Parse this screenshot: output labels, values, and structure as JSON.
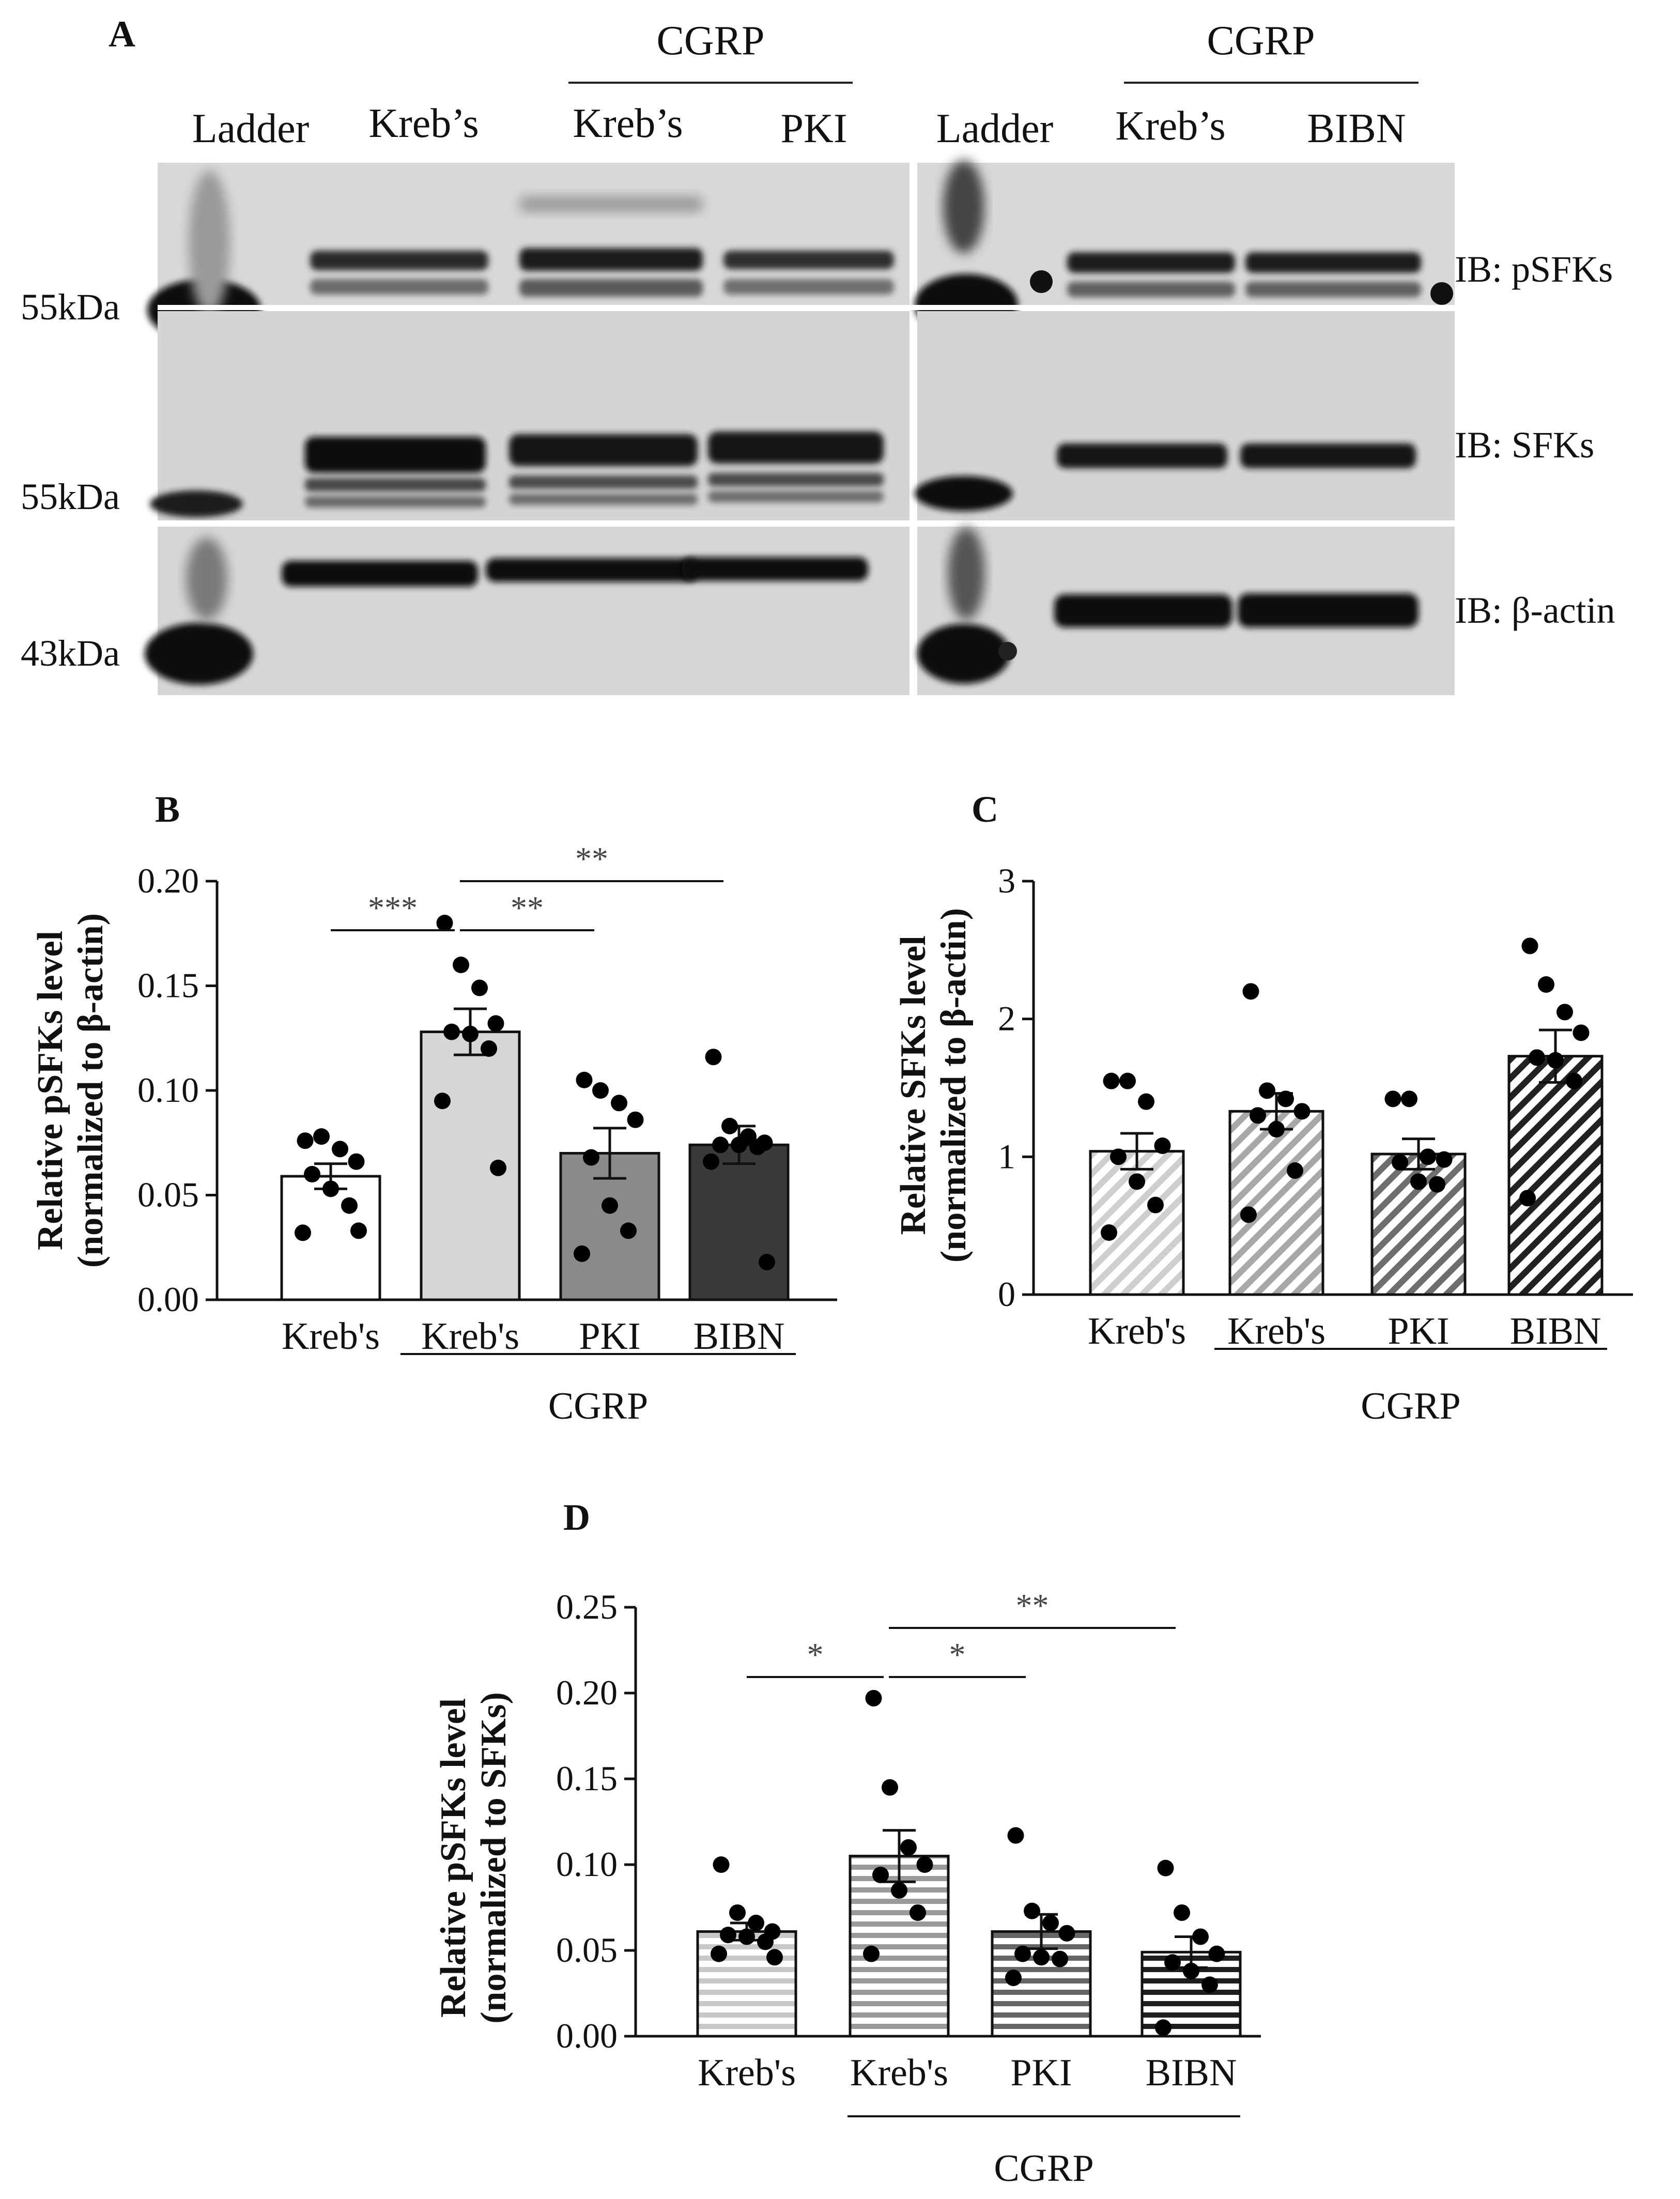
{
  "panel_a": {
    "letter": "A",
    "left_header": {
      "group": "CGRP",
      "lanes": [
        "Ladder",
        "Kreb’s",
        "Kreb’s",
        "PKI"
      ]
    },
    "right_header": {
      "group": "CGRP",
      "lanes": [
        "Ladder",
        "Kreb’s",
        "BIBN"
      ]
    },
    "blots": [
      {
        "marker": "55kDa",
        "label": "IB: pSFKs"
      },
      {
        "marker": "55kDa",
        "label": "IB: SFKs"
      },
      {
        "marker": "43kDa",
        "label": "IB: β-actin"
      }
    ]
  },
  "chart_data": [
    {
      "panel": "B",
      "type": "bar",
      "categories": [
        "Kreb's",
        "Kreb's",
        "PKI",
        "BIBN"
      ],
      "group_label": "CGRP",
      "ylabel_line1": "Relative pSFKs level",
      "ylabel_line2": "(normalized to β-actin)",
      "ylim": [
        0,
        0.2
      ],
      "yticks": [
        "0.00",
        "0.05",
        "0.10",
        "0.15",
        "0.20"
      ],
      "ytick_values": [
        0,
        0.05,
        0.1,
        0.15,
        0.2
      ],
      "series": [
        {
          "values": [
            0.059,
            0.128,
            0.07,
            0.074
          ],
          "sem": [
            0.006,
            0.011,
            0.012,
            0.009
          ]
        }
      ],
      "bar_colors": [
        "#ffffff",
        "#d6d6d6",
        "#8a8a8a",
        "#3a3a3a"
      ],
      "pattern": "solid",
      "points": [
        [
          0.076,
          0.078,
          0.072,
          0.066,
          0.06,
          0.053,
          0.045,
          0.032,
          0.033
        ],
        [
          0.18,
          0.16,
          0.149,
          0.132,
          0.128,
          0.127,
          0.12,
          0.095,
          0.063
        ],
        [
          0.105,
          0.1,
          0.094,
          0.086,
          0.068,
          0.045,
          0.033,
          0.022
        ],
        [
          0.116,
          0.083,
          0.078,
          0.075,
          0.074,
          0.074,
          0.073,
          0.066,
          0.018
        ]
      ],
      "significance": [
        {
          "from": 0,
          "to": 1,
          "label": "***"
        },
        {
          "from": 1,
          "to": 2,
          "label": "**"
        },
        {
          "from": 1,
          "to": 3,
          "label": "**"
        }
      ]
    },
    {
      "panel": "C",
      "type": "bar",
      "categories": [
        "Kreb's",
        "Kreb's",
        "PKI",
        "BIBN"
      ],
      "group_label": "CGRP",
      "ylabel_line1": "Relative SFKs level",
      "ylabel_line2": "(normalized to β-actin)",
      "ylim": [
        0,
        3
      ],
      "yticks": [
        "0",
        "1",
        "2",
        "3"
      ],
      "ytick_values": [
        0,
        1,
        2,
        3
      ],
      "series": [
        {
          "values": [
            1.04,
            1.33,
            1.02,
            1.73
          ],
          "sem": [
            0.13,
            0.13,
            0.11,
            0.19
          ]
        }
      ],
      "bar_colors": [
        "#cfcfcf",
        "#a8a8a8",
        "#6e6e6e",
        "#222222"
      ],
      "pattern": "diagonal",
      "points": [
        [
          1.55,
          1.55,
          1.4,
          1.08,
          1.0,
          0.82,
          0.65,
          0.45
        ],
        [
          2.2,
          1.48,
          1.42,
          1.33,
          1.3,
          1.2,
          0.9,
          0.58
        ],
        [
          1.42,
          1.42,
          1.0,
          0.98,
          0.96,
          0.82,
          0.8
        ],
        [
          2.53,
          2.25,
          2.05,
          1.9,
          1.72,
          1.7,
          1.55,
          0.7
        ]
      ],
      "significance": []
    },
    {
      "panel": "D",
      "type": "bar",
      "categories": [
        "Kreb's",
        "Kreb's",
        "PKI",
        "BIBN"
      ],
      "group_label": "CGRP",
      "ylabel_line1": "Relative pSFKs level",
      "ylabel_line2": "(normalized to SFKs)",
      "ylim": [
        0,
        0.25
      ],
      "yticks": [
        "0.00",
        "0.05",
        "0.10",
        "0.15",
        "0.20",
        "0.25"
      ],
      "ytick_values": [
        0,
        0.05,
        0.1,
        0.15,
        0.2,
        0.25
      ],
      "series": [
        {
          "values": [
            0.061,
            0.105,
            0.061,
            0.049
          ],
          "sem": [
            0.005,
            0.015,
            0.01,
            0.009
          ]
        }
      ],
      "bar_colors": [
        "#c8c8c8",
        "#9a9a9a",
        "#666666",
        "#1e1e1e"
      ],
      "pattern": "horizontal",
      "points": [
        [
          0.1,
          0.072,
          0.066,
          0.061,
          0.059,
          0.058,
          0.055,
          0.048,
          0.046
        ],
        [
          0.197,
          0.145,
          0.11,
          0.1,
          0.094,
          0.085,
          0.072,
          0.048
        ],
        [
          0.117,
          0.073,
          0.066,
          0.06,
          0.048,
          0.046,
          0.045,
          0.034
        ],
        [
          0.098,
          0.072,
          0.058,
          0.048,
          0.043,
          0.038,
          0.03,
          0.005
        ]
      ],
      "significance": [
        {
          "from": 0,
          "to": 1,
          "label": "*"
        },
        {
          "from": 1,
          "to": 2,
          "label": "*"
        },
        {
          "from": 1,
          "to": 3,
          "label": "**"
        }
      ]
    }
  ]
}
